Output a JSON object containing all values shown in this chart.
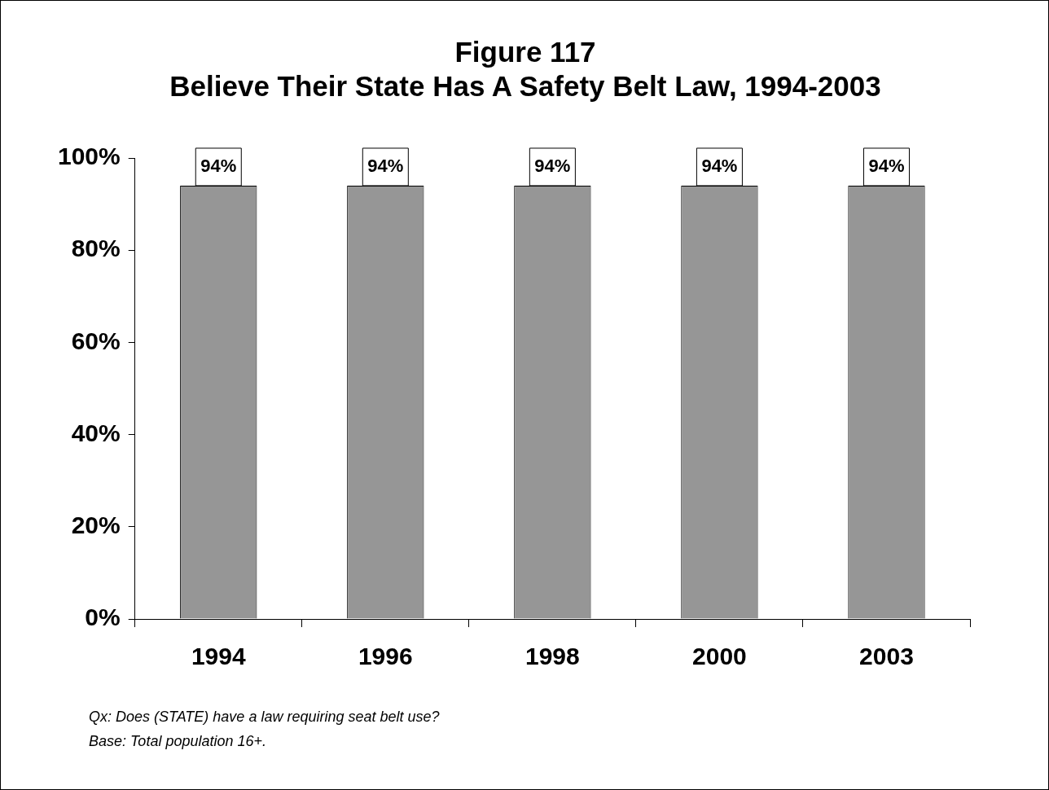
{
  "chart_data": {
    "type": "bar",
    "title": "Figure 117",
    "subtitle": "Believe Their State Has A Safety Belt Law, 1994-2003",
    "categories": [
      "1994",
      "1996",
      "1998",
      "2000",
      "2003"
    ],
    "values": [
      94,
      94,
      94,
      94,
      94
    ],
    "color": "#969696",
    "ylim": [
      0,
      100
    ],
    "yticks": [
      {
        "value": 0,
        "label": "0%"
      },
      {
        "value": 20,
        "label": "20%"
      },
      {
        "value": 40,
        "label": "40%"
      },
      {
        "value": 60,
        "label": "60%"
      },
      {
        "value": 80,
        "label": "80%"
      },
      {
        "value": 100,
        "label": "100%"
      }
    ],
    "value_labels": [
      "94%",
      "94%",
      "94%",
      "94%",
      "94%"
    ],
    "grid": false,
    "legend": false,
    "annotations": [
      "Qx:  Does (STATE) have a law requiring seat belt use?",
      "Base:  Total population 16+."
    ]
  }
}
